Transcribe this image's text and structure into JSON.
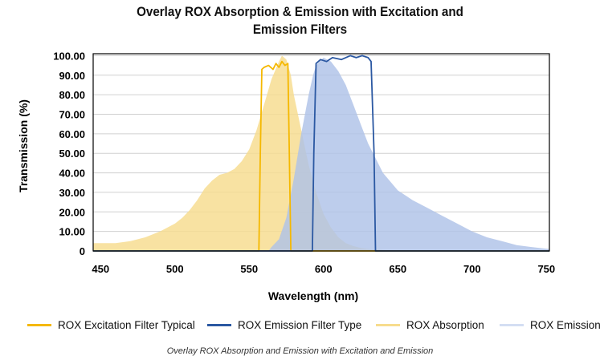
{
  "chart_data": {
    "type": "area",
    "title_line1": "Overlay ROX Absorption & Emission with Excitation and",
    "title_line2": "Emission Filters",
    "xlabel": "Wavelength (nm)",
    "ylabel": "Transmission (%)",
    "xlim": [
      445,
      752
    ],
    "ylim": [
      0,
      101
    ],
    "x_ticks": [
      450,
      500,
      550,
      600,
      650,
      700,
      750
    ],
    "y_ticks": [
      0,
      10,
      20,
      30,
      40,
      50,
      60,
      70,
      80,
      90,
      100
    ],
    "y_tick_labels": [
      "0",
      "10.00",
      "20.00",
      "30.00",
      "40.00",
      "50.00",
      "60.00",
      "70.00",
      "80.00",
      "90.00",
      "100.00"
    ],
    "grid": true,
    "legend_position": "bottom",
    "caption": "Overlay ROX Absorption and Emission with Excitation and Emission",
    "series": [
      {
        "name": "ROX Absorption",
        "kind": "area",
        "color": "#f7dc8e",
        "x": [
          445,
          450,
          460,
          470,
          480,
          490,
          500,
          505,
          510,
          515,
          520,
          525,
          530,
          535,
          540,
          545,
          550,
          555,
          560,
          565,
          570,
          572,
          575,
          578,
          580,
          585,
          590,
          595,
          600,
          605,
          610,
          615,
          620,
          625,
          630,
          640,
          650
        ],
        "y": [
          4,
          4,
          4,
          5,
          7,
          10,
          14,
          17,
          21,
          26,
          32,
          36,
          39,
          40,
          42,
          46,
          52,
          62,
          75,
          88,
          97,
          100,
          98,
          90,
          80,
          62,
          44,
          30,
          19,
          12,
          7,
          4,
          2.5,
          1.5,
          1,
          0.5,
          0
        ]
      },
      {
        "name": "ROX Emission",
        "kind": "area",
        "color": "#aec2e8",
        "x": [
          563,
          565,
          570,
          575,
          580,
          585,
          590,
          593,
          595,
          600,
          605,
          610,
          615,
          620,
          625,
          630,
          640,
          650,
          660,
          670,
          680,
          690,
          700,
          710,
          720,
          730,
          740,
          752
        ],
        "y": [
          0,
          2,
          6,
          17,
          37,
          60,
          80,
          90,
          95,
          99,
          97,
          92,
          85,
          75,
          65,
          55,
          40,
          31,
          26,
          22,
          18,
          14,
          10,
          7,
          5,
          3,
          2,
          1
        ]
      },
      {
        "name": "ROX Excitation Filter Typical",
        "kind": "line",
        "color": "#f5b800",
        "x": [
          445,
          556.5,
          557.5,
          558.5,
          560,
          563,
          566,
          568,
          570,
          572,
          574,
          576,
          577,
          578,
          752
        ],
        "y": [
          0,
          0,
          50,
          93,
          94,
          95,
          93,
          96,
          94,
          97,
          95,
          96,
          50,
          0,
          0
        ]
      },
      {
        "name": "ROX Emission Filter Type",
        "kind": "line",
        "color": "#2b58a2",
        "x": [
          445,
          592.5,
          593.5,
          595,
          598,
          602,
          606,
          612,
          618,
          622,
          626,
          630,
          632,
          634,
          635,
          752
        ],
        "y": [
          0,
          0,
          50,
          96,
          98,
          97,
          99,
          98,
          100,
          99,
          100,
          99,
          97,
          50,
          0,
          0
        ]
      }
    ]
  }
}
